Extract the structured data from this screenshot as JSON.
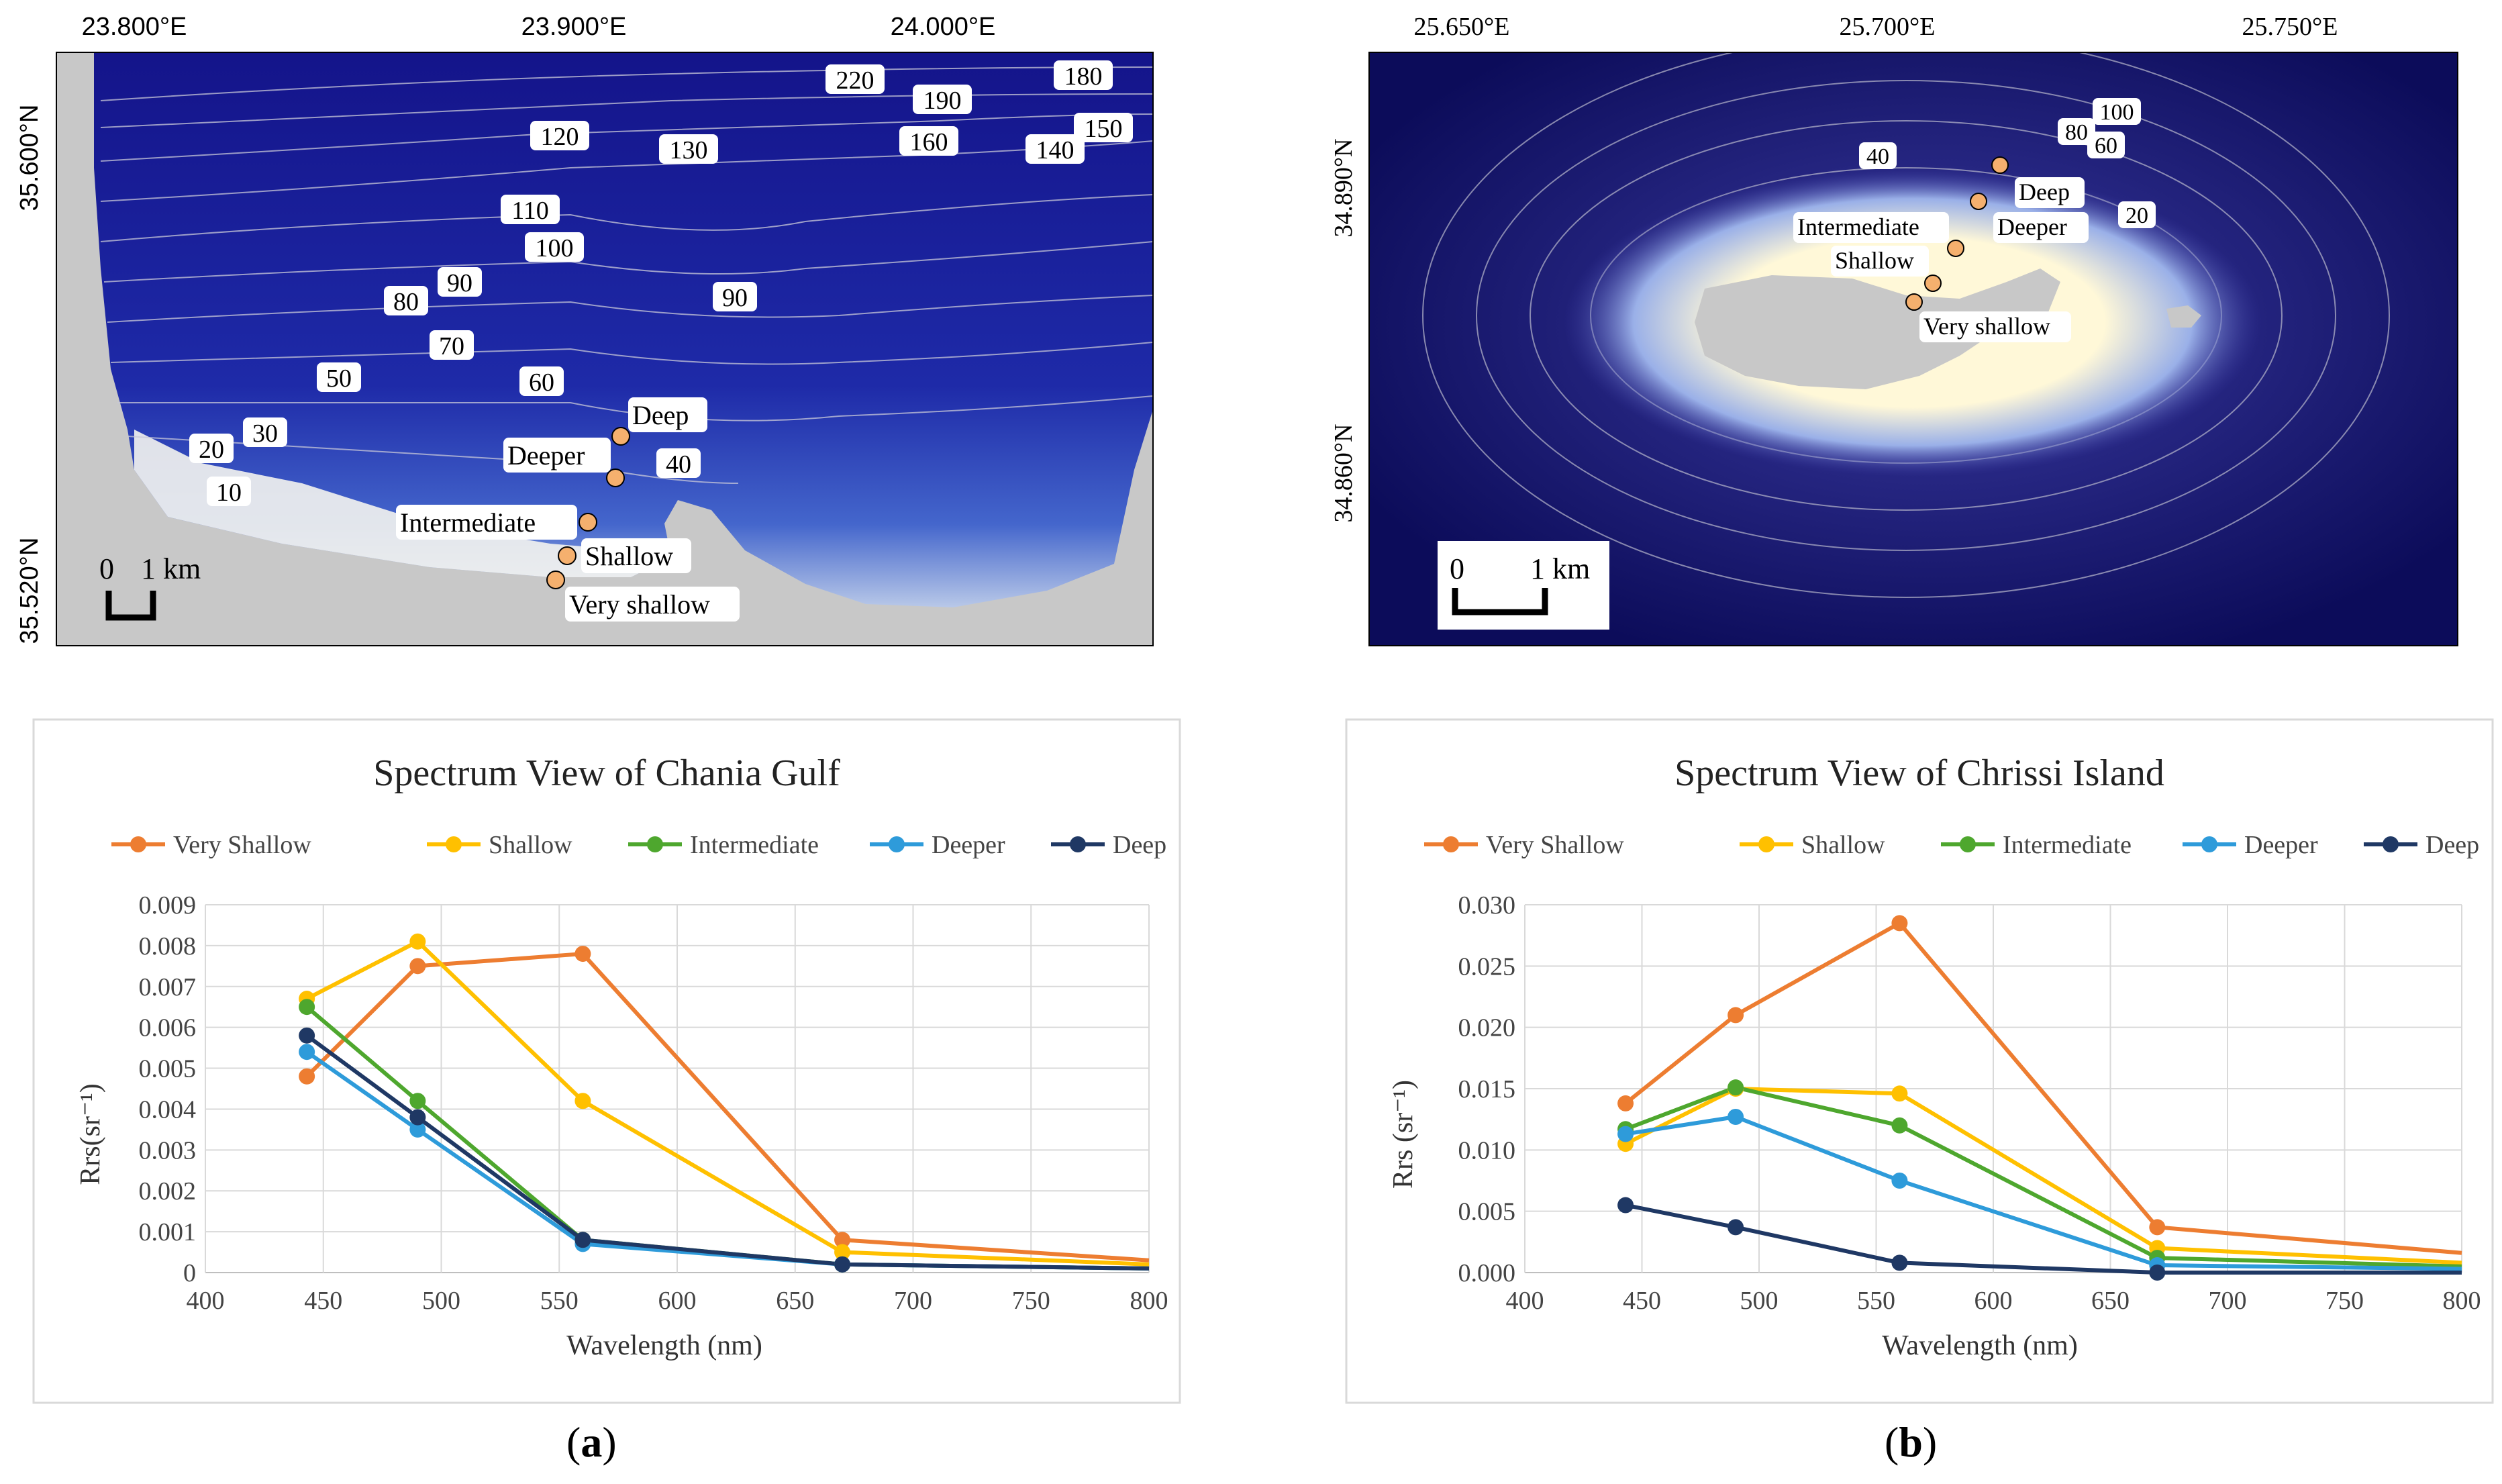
{
  "maps": [
    {
      "id": "a",
      "lon_labels": [
        "23.800°E",
        "23.900°E",
        "24.000°E"
      ],
      "lat_labels": [
        "35.600°N",
        "35.520°N"
      ],
      "contours": [
        "220",
        "190",
        "180",
        "160",
        "150",
        "140",
        "130",
        "120",
        "110",
        "100",
        "90",
        "90",
        "80",
        "70",
        "60",
        "50",
        "40",
        "30",
        "20",
        "10"
      ],
      "stations": [
        "Deep",
        "Deeper",
        "Intermediate",
        "Shallow",
        "Very shallow"
      ],
      "scale": {
        "zero": "0",
        "distance": "1 km"
      }
    },
    {
      "id": "b",
      "lon_labels": [
        "25.650°E",
        "25.700°E",
        "25.750°E"
      ],
      "lat_labels": [
        "34.890°N",
        "34.860°N"
      ],
      "contours": [
        "100",
        "80",
        "60",
        "40",
        "20"
      ],
      "stations": [
        "Deep",
        "Deeper",
        "Intermediate",
        "Shallow",
        "Very shallow"
      ],
      "scale": {
        "zero": "0",
        "distance": "1 km"
      }
    }
  ],
  "chart_data": [
    {
      "type": "line",
      "title": "Spectrum View of Chania Gulf",
      "xlabel": "Wavelength (nm)",
      "ylabel": "Rrs(sr⁻¹)",
      "xlim": [
        400,
        800
      ],
      "ylim": [
        0,
        0.009
      ],
      "xticks": [
        "400",
        "450",
        "500",
        "550",
        "600",
        "650",
        "700",
        "750",
        "800"
      ],
      "yticks": [
        "0",
        "0.001",
        "0.002",
        "0.003",
        "0.004",
        "0.005",
        "0.006",
        "0.007",
        "0.008",
        "0.009"
      ],
      "x": [
        443,
        490,
        560,
        670,
        800
      ],
      "series": [
        {
          "name": "Very Shallow",
          "color": "#ED7D31",
          "values": [
            0.0048,
            0.0075,
            0.0078,
            0.0008,
            0.0003
          ]
        },
        {
          "name": "Shallow",
          "color": "#FFC000",
          "values": [
            0.0067,
            0.0081,
            0.0042,
            0.0005,
            0.0002
          ]
        },
        {
          "name": "Intermediate",
          "color": "#4EA72E",
          "values": [
            0.0065,
            0.0042,
            0.0008,
            0.0002,
            0.0001
          ]
        },
        {
          "name": "Deeper",
          "color": "#2E9BDA",
          "values": [
            0.0054,
            0.0035,
            0.0007,
            0.0002,
            0.0001
          ]
        },
        {
          "name": "Deep",
          "color": "#1F3864",
          "values": [
            0.0058,
            0.0038,
            0.0008,
            0.0002,
            0.0001
          ]
        }
      ],
      "caption": "a"
    },
    {
      "type": "line",
      "title": "Spectrum View of Chrissi Island",
      "xlabel": "Wavelength (nm)",
      "ylabel": "Rrs (sr⁻¹)",
      "xlim": [
        400,
        800
      ],
      "ylim": [
        0,
        0.03
      ],
      "xticks": [
        "400",
        "450",
        "500",
        "550",
        "600",
        "650",
        "700",
        "750",
        "800"
      ],
      "yticks": [
        "0.000",
        "0.005",
        "0.010",
        "0.015",
        "0.020",
        "0.025",
        "0.030"
      ],
      "x": [
        443,
        490,
        560,
        670,
        800
      ],
      "series": [
        {
          "name": "Very Shallow",
          "color": "#ED7D31",
          "values": [
            0.0138,
            0.021,
            0.0285,
            0.0037,
            0.0016
          ]
        },
        {
          "name": "Shallow",
          "color": "#FFC000",
          "values": [
            0.0105,
            0.015,
            0.0146,
            0.002,
            0.0008
          ]
        },
        {
          "name": "Intermediate",
          "color": "#4EA72E",
          "values": [
            0.0117,
            0.0151,
            0.012,
            0.0012,
            0.0005
          ]
        },
        {
          "name": "Deeper",
          "color": "#2E9BDA",
          "values": [
            0.0113,
            0.0127,
            0.0075,
            0.0006,
            0.0003
          ]
        },
        {
          "name": "Deep",
          "color": "#1F3864",
          "values": [
            0.0055,
            0.0037,
            0.0008,
            0.0,
            0.0
          ]
        }
      ],
      "caption": "b"
    }
  ]
}
